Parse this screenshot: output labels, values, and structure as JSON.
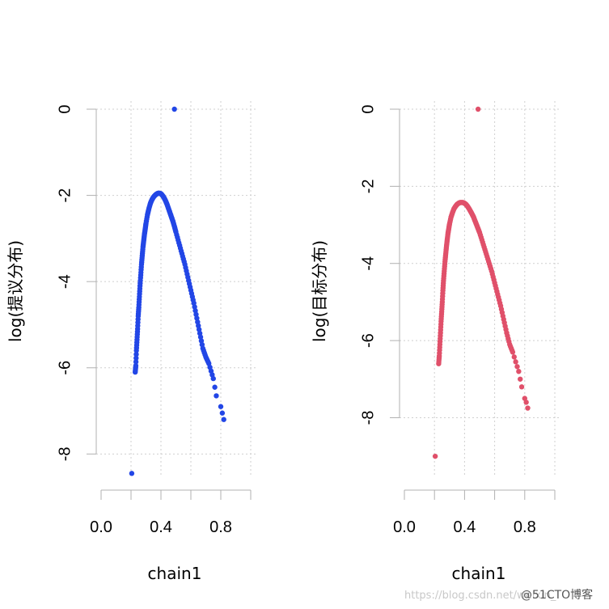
{
  "chart_data": [
    {
      "type": "scatter",
      "title": "",
      "xlabel": "chain1",
      "ylabel": "log(提议分布)",
      "xlim": [
        0.0,
        1.0
      ],
      "ylim": [
        -8.5,
        0.0
      ],
      "x_ticks": [
        "0.0",
        "0.4",
        "0.8"
      ],
      "x_tick_values": [
        0.0,
        0.4,
        0.8
      ],
      "y_ticks": [
        "0",
        "-2",
        "-4",
        "-6",
        "-8"
      ],
      "y_tick_values": [
        0,
        -2,
        -4,
        -6,
        -8
      ],
      "grid": true,
      "color": "#2246e6",
      "series": [
        {
          "x": [
            0.205,
            0.228,
            0.232,
            0.236,
            0.24,
            0.244,
            0.248,
            0.252,
            0.256,
            0.26,
            0.265,
            0.27,
            0.275,
            0.28,
            0.285,
            0.29,
            0.295,
            0.3,
            0.31,
            0.32,
            0.33,
            0.34,
            0.35,
            0.36,
            0.37,
            0.38,
            0.39,
            0.4,
            0.41,
            0.42,
            0.43,
            0.44,
            0.45,
            0.46,
            0.47,
            0.48,
            0.49,
            0.5,
            0.52,
            0.54,
            0.56,
            0.58,
            0.6,
            0.62,
            0.64,
            0.66,
            0.68,
            0.7,
            0.72,
            0.75,
            0.76,
            0.77,
            0.8,
            0.81,
            0.82,
            0.49
          ],
          "y": [
            -8.45,
            -6.1,
            -5.95,
            -5.6,
            -5.35,
            -5.1,
            -4.8,
            -4.6,
            -4.35,
            -4.1,
            -3.85,
            -3.6,
            -3.4,
            -3.2,
            -3.05,
            -2.9,
            -2.78,
            -2.65,
            -2.45,
            -2.3,
            -2.18,
            -2.1,
            -2.04,
            -2.0,
            -1.97,
            -1.95,
            -1.95,
            -1.96,
            -2.0,
            -2.05,
            -2.12,
            -2.2,
            -2.3,
            -2.4,
            -2.5,
            -2.6,
            -2.72,
            -2.85,
            -3.1,
            -3.35,
            -3.6,
            -3.9,
            -4.2,
            -4.5,
            -4.85,
            -5.2,
            -5.55,
            -5.75,
            -5.9,
            -6.25,
            -6.45,
            -6.65,
            -6.9,
            -7.05,
            -7.2,
            0.0
          ]
        }
      ]
    },
    {
      "type": "scatter",
      "title": "",
      "xlabel": "chain1",
      "ylabel": "log(目标分布)",
      "xlim": [
        0.0,
        1.0
      ],
      "ylim": [
        -9.5,
        0.0
      ],
      "x_ticks": [
        "0.0",
        "0.4",
        "0.8"
      ],
      "x_tick_values": [
        0.0,
        0.4,
        0.8
      ],
      "y_ticks": [
        "0",
        "-2",
        "-4",
        "-6",
        "-8"
      ],
      "y_tick_values": [
        0,
        -2,
        -4,
        -6,
        -8
      ],
      "grid": true,
      "color": "#e0506a",
      "series": [
        {
          "x": [
            0.205,
            0.228,
            0.232,
            0.236,
            0.24,
            0.244,
            0.248,
            0.252,
            0.256,
            0.26,
            0.265,
            0.27,
            0.275,
            0.28,
            0.285,
            0.29,
            0.295,
            0.3,
            0.31,
            0.32,
            0.33,
            0.34,
            0.35,
            0.36,
            0.37,
            0.38,
            0.39,
            0.4,
            0.41,
            0.42,
            0.43,
            0.44,
            0.45,
            0.46,
            0.47,
            0.48,
            0.49,
            0.5,
            0.52,
            0.54,
            0.56,
            0.58,
            0.6,
            0.62,
            0.64,
            0.66,
            0.68,
            0.7,
            0.72,
            0.76,
            0.77,
            0.78,
            0.8,
            0.81,
            0.82,
            0.49
          ],
          "y": [
            -9.0,
            -6.6,
            -6.4,
            -6.1,
            -5.8,
            -5.5,
            -5.25,
            -5.0,
            -4.7,
            -4.45,
            -4.2,
            -3.95,
            -3.75,
            -3.55,
            -3.38,
            -3.22,
            -3.1,
            -2.98,
            -2.8,
            -2.68,
            -2.58,
            -2.52,
            -2.47,
            -2.44,
            -2.42,
            -2.42,
            -2.42,
            -2.44,
            -2.47,
            -2.52,
            -2.58,
            -2.65,
            -2.72,
            -2.8,
            -2.9,
            -3.0,
            -3.1,
            -3.2,
            -3.45,
            -3.7,
            -3.95,
            -4.2,
            -4.5,
            -4.8,
            -5.1,
            -5.45,
            -5.8,
            -6.1,
            -6.3,
            -6.8,
            -7.0,
            -7.2,
            -7.5,
            -7.6,
            -7.75,
            0.0
          ]
        }
      ]
    }
  ],
  "watermark": "https://blog.csdn.net/weixin_",
  "credit": "@51CTO博客"
}
